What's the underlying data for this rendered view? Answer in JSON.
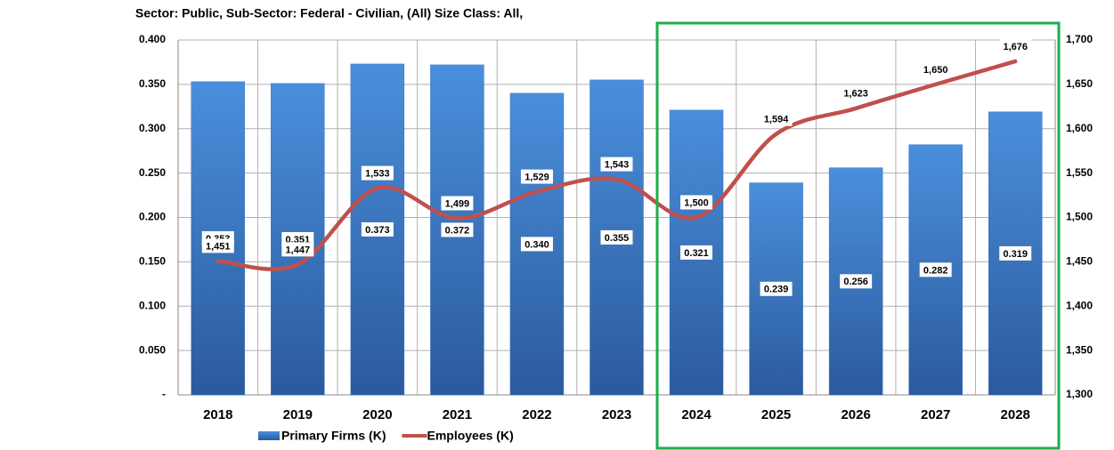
{
  "chart_data": {
    "type": "bar-line",
    "title": "Sector: Public, Sub-Sector: Federal - Civilian, (All) Size Class: All,",
    "categories": [
      "2018",
      "2019",
      "2020",
      "2021",
      "2022",
      "2023",
      "2024",
      "2025",
      "2026",
      "2027",
      "2028"
    ],
    "series": [
      {
        "name": "Primary Firms (K)",
        "type": "bar",
        "color": "#3a75c4",
        "values": [
          0.353,
          0.351,
          0.373,
          0.372,
          0.34,
          0.355,
          0.321,
          0.239,
          0.256,
          0.282,
          0.319
        ],
        "value_labels": [
          "0.353",
          "0.351",
          "0.373",
          "0.372",
          "0.340",
          "0.355",
          "0.321",
          "0.239",
          "0.256",
          "0.282",
          "0.319"
        ]
      },
      {
        "name": "Employees (K)",
        "type": "line",
        "axis": "y2",
        "color": "#c0504d",
        "values": [
          1451,
          1447,
          1533,
          1499,
          1529,
          1543,
          1500,
          1594,
          1623,
          1650,
          1676
        ],
        "value_labels": [
          "1,451",
          "1,447",
          "1,533",
          "1,499",
          "1,529",
          "1,543",
          "1,500",
          "1,594",
          "1,623",
          "1,650",
          "1,676"
        ]
      }
    ],
    "ylim": [
      0,
      0.4
    ],
    "yticks": [
      {
        "value": 0,
        "label": "-"
      },
      {
        "value": 0.05,
        "label": "0.050"
      },
      {
        "value": 0.1,
        "label": "0.100"
      },
      {
        "value": 0.15,
        "label": "0.150"
      },
      {
        "value": 0.2,
        "label": "0.200"
      },
      {
        "value": 0.25,
        "label": "0.250"
      },
      {
        "value": 0.3,
        "label": "0.300"
      },
      {
        "value": 0.35,
        "label": "0.350"
      },
      {
        "value": 0.4,
        "label": "0.400"
      }
    ],
    "y2lim": [
      1300,
      1700
    ],
    "y2ticks": [
      {
        "value": 1300,
        "label": "1,300"
      },
      {
        "value": 1350,
        "label": "1,350"
      },
      {
        "value": 1400,
        "label": "1,400"
      },
      {
        "value": 1450,
        "label": "1,450"
      },
      {
        "value": 1500,
        "label": "1,500"
      },
      {
        "value": 1550,
        "label": "1,550"
      },
      {
        "value": 1600,
        "label": "1,600"
      },
      {
        "value": 1650,
        "label": "1,650"
      },
      {
        "value": 1700,
        "label": "1,700"
      }
    ],
    "grid": true,
    "legend": "bottom"
  }
}
